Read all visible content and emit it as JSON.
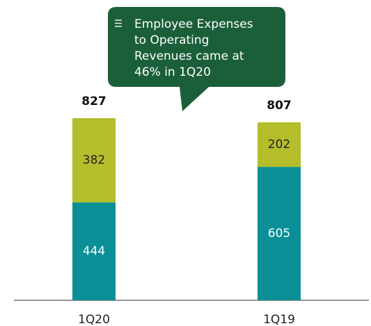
{
  "chart_data": {
    "type": "bar",
    "stacked": true,
    "categories": [
      "1Q20",
      "1Q19"
    ],
    "series": [
      {
        "color": "#0a8f96",
        "values": [
          444,
          605
        ]
      },
      {
        "color": "#b3be2a",
        "values": [
          382,
          202
        ]
      }
    ],
    "totals": [
      827,
      807
    ],
    "annotation": [
      "Employee Expenses",
      "to Operating",
      "Revenues came at",
      "46% in 1Q20"
    ],
    "annotation_color": "#1b5e3a"
  }
}
